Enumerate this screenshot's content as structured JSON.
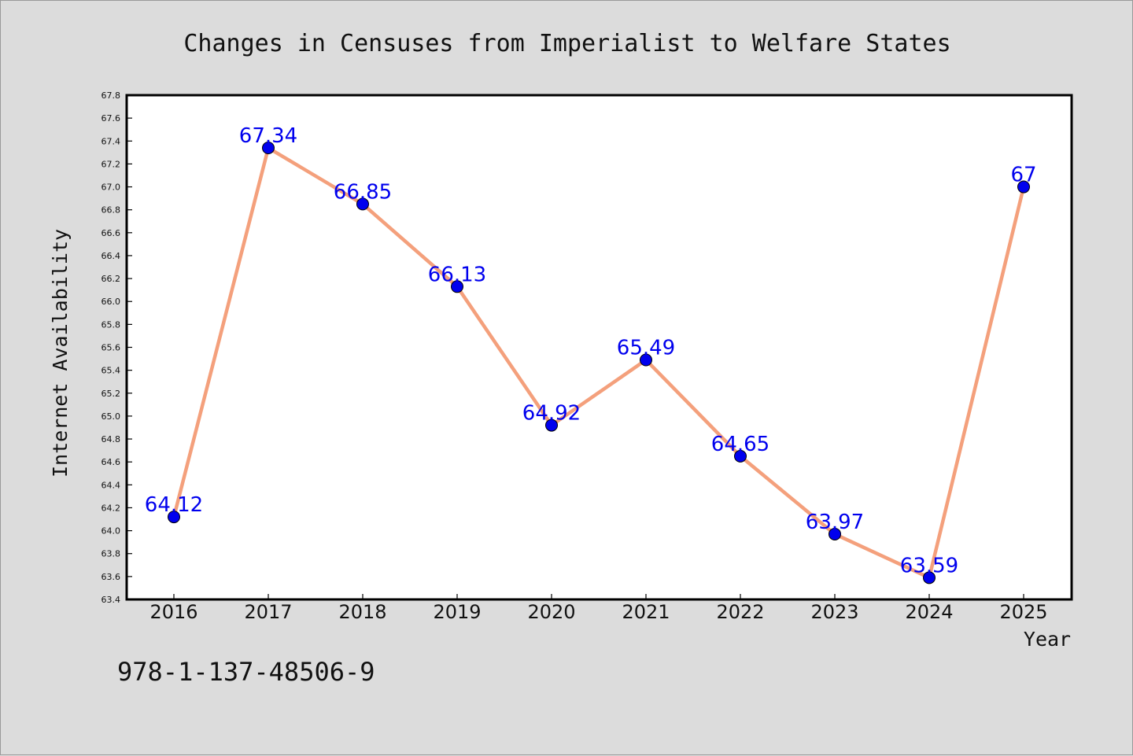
{
  "chart_data": {
    "type": "line",
    "title": "Changes in Censuses from Imperialist to Welfare States",
    "xlabel": "Year",
    "ylabel": "Internet Availability",
    "categories": [
      "2016",
      "2017",
      "2018",
      "2019",
      "2020",
      "2021",
      "2022",
      "2023",
      "2024",
      "2025"
    ],
    "series": [
      {
        "values": [
          64.12,
          67.34,
          66.85,
          66.13,
          64.92,
          65.49,
          64.65,
          63.97,
          63.59,
          67
        ],
        "data_labels": [
          "64.12",
          "67.34",
          "66.85",
          "66.13",
          "64.92",
          "65.49",
          "64.65",
          "63.97",
          "63.59",
          "67"
        ]
      }
    ],
    "ylim": [
      63.4,
      67.8
    ],
    "yticks": [
      "63.4",
      "63.6",
      "63.8",
      "64.0",
      "64.2",
      "64.4",
      "64.6",
      "64.8",
      "65.0",
      "65.2",
      "65.4",
      "65.6",
      "65.8",
      "66.0",
      "66.2",
      "66.4",
      "66.6",
      "66.8",
      "67.0",
      "67.2",
      "67.4",
      "67.6",
      "67.8"
    ],
    "grid": false,
    "line_color": "#f4a07c",
    "marker_color": "#0000ee",
    "label_color": "#0000ee"
  },
  "footer": {
    "isbn": "978-1-137-48506-9"
  }
}
